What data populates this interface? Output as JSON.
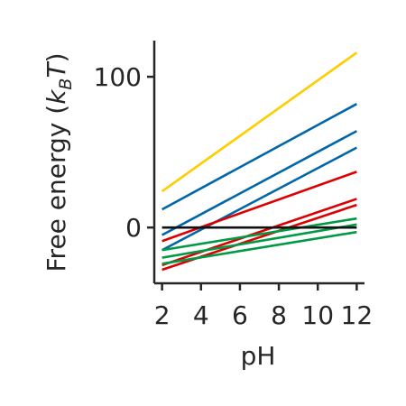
{
  "chart_data": {
    "type": "line",
    "xlabel": "pH",
    "ylabel": {
      "prefix": "Free energy (",
      "k": "k",
      "sub": "B",
      "T": "T",
      "suffix": ")"
    },
    "xlim": [
      1.6,
      12.4
    ],
    "ylim": [
      -37,
      124
    ],
    "xticks": [
      2,
      4,
      6,
      8,
      10,
      12
    ],
    "xtick_labels": [
      "2",
      "4",
      "6",
      "8",
      "10",
      "12"
    ],
    "yticks": [
      0,
      100
    ],
    "ytick_labels": [
      "0",
      "100"
    ],
    "grid": false,
    "legend": "none",
    "series": [
      {
        "color": "#FFCC00",
        "x": [
          2,
          12
        ],
        "y": [
          24,
          116
        ]
      },
      {
        "color": "#0066AA",
        "x": [
          2,
          12
        ],
        "y": [
          12,
          82
        ]
      },
      {
        "color": "#0066AA",
        "x": [
          2,
          12
        ],
        "y": [
          -5,
          64
        ]
      },
      {
        "color": "#0066AA",
        "x": [
          2,
          12
        ],
        "y": [
          -15,
          53
        ]
      },
      {
        "color": "#DD0000",
        "x": [
          2,
          12
        ],
        "y": [
          -9,
          37
        ]
      },
      {
        "color": "#DD0000",
        "x": [
          2,
          12
        ],
        "y": [
          -25,
          19
        ]
      },
      {
        "color": "#DD0000",
        "x": [
          2,
          12
        ],
        "y": [
          -28,
          15
        ]
      },
      {
        "color": "#009944",
        "x": [
          2,
          12
        ],
        "y": [
          -15,
          6
        ]
      },
      {
        "color": "#009944",
        "x": [
          2,
          12
        ],
        "y": [
          -20,
          2
        ]
      },
      {
        "color": "#009944",
        "x": [
          2,
          12
        ],
        "y": [
          -24,
          -3
        ]
      },
      {
        "color": "#111111",
        "x": [
          2,
          12
        ],
        "y": [
          0,
          0
        ]
      }
    ]
  }
}
